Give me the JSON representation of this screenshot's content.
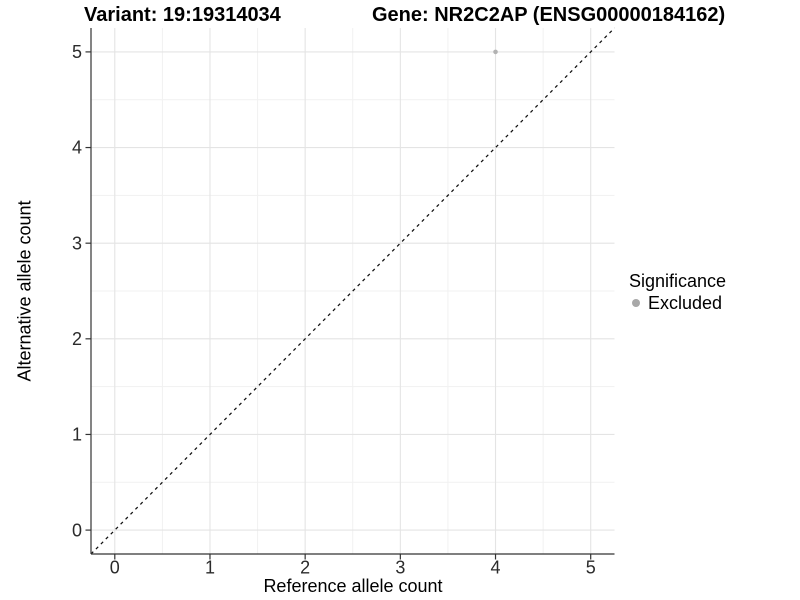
{
  "chart_data": {
    "type": "scatter",
    "title_left": "Variant: 19:19314034",
    "title_right": "Gene: NR2C2AP (ENSG00000184162)",
    "xlabel": "Reference allele count",
    "ylabel": "Alternative allele count",
    "xlim": [
      -0.25,
      5.25
    ],
    "ylim": [
      -0.25,
      5.25
    ],
    "xticks": [
      0,
      1,
      2,
      3,
      4,
      5
    ],
    "yticks": [
      0,
      1,
      2,
      3,
      4,
      5
    ],
    "grid": true,
    "minor_grid": true,
    "identity_line": {
      "style": "dashed",
      "from": [
        -0.25,
        -0.25
      ],
      "to": [
        5.25,
        5.25
      ],
      "color": "#111111"
    },
    "series": [
      {
        "name": "Excluded",
        "color": "#b2b2b2",
        "points": [
          {
            "x": 4,
            "y": 5
          }
        ]
      }
    ],
    "legend": {
      "title": "Significance",
      "position": "right",
      "items": [
        {
          "label": "Excluded",
          "color": "#a8a8a8"
        }
      ]
    },
    "colors": {
      "background": "#ffffff",
      "grid_major": "#e4e4e4",
      "grid_minor": "#f1f1f1",
      "axis_line": "#333333",
      "tick_mark": "#333333",
      "tick_text": "#2b2b2b"
    }
  }
}
